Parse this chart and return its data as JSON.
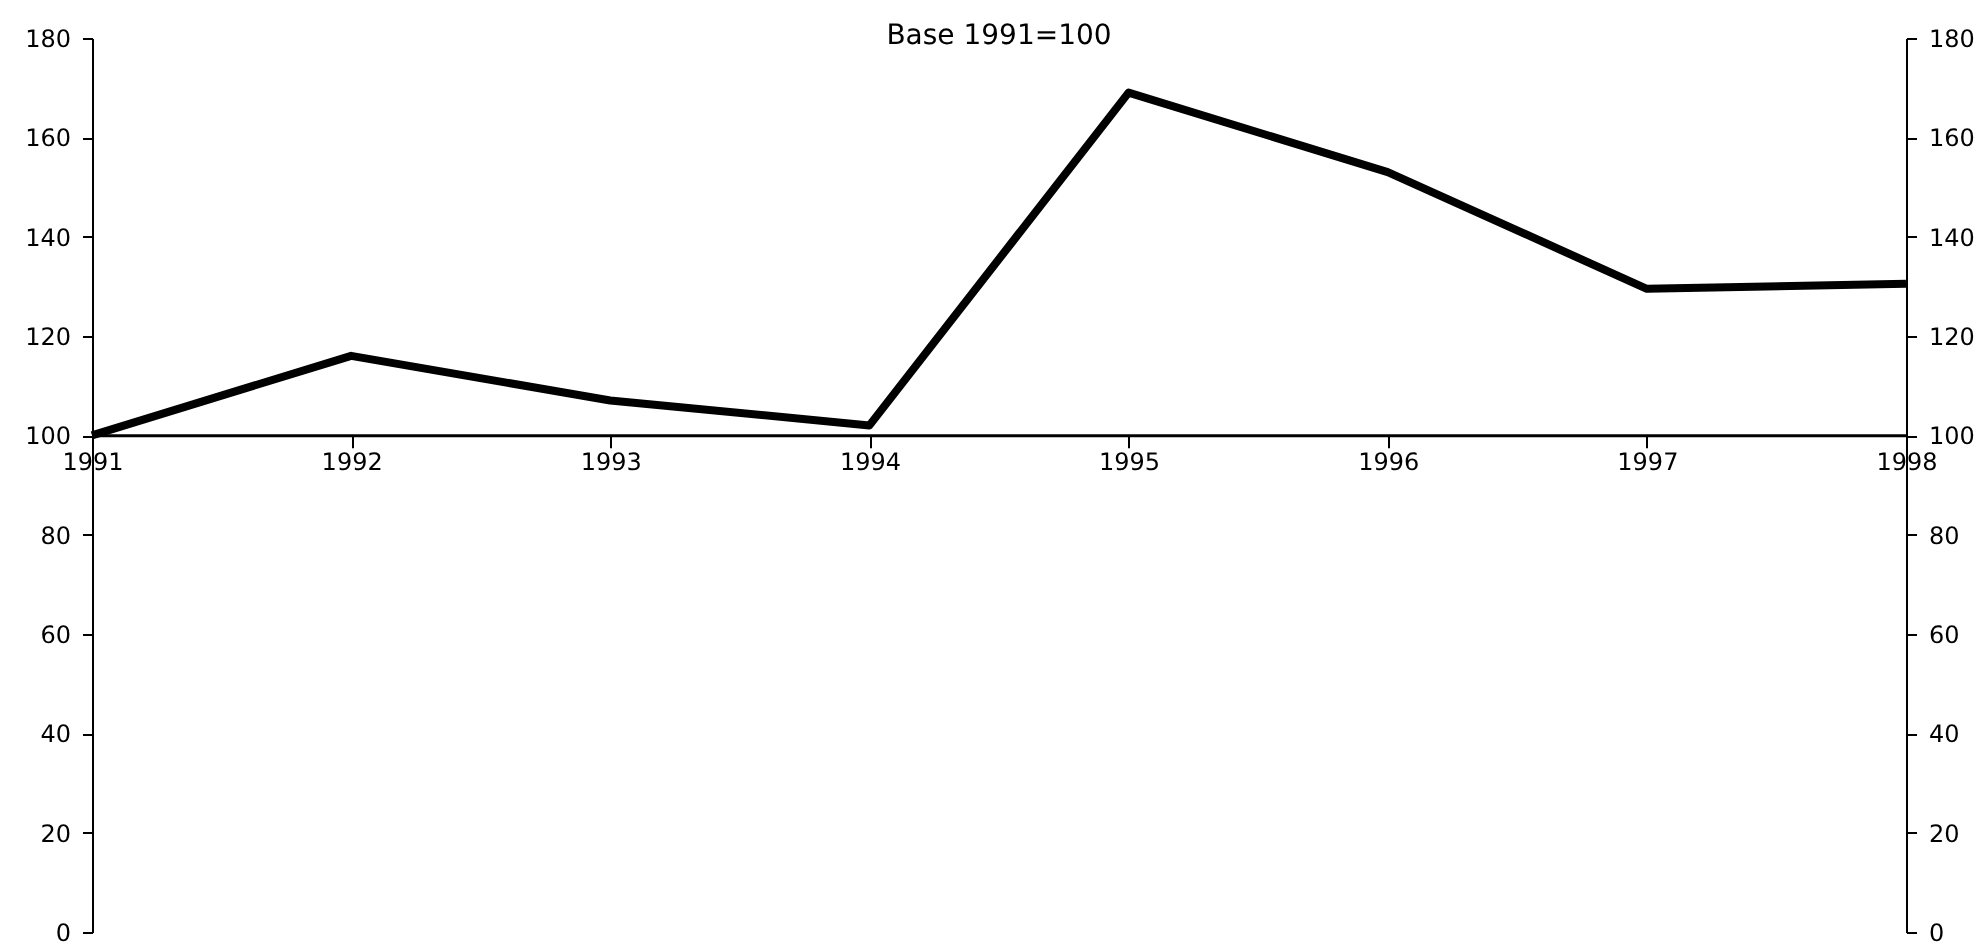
{
  "chart_data": {
    "type": "line",
    "title": "Base 1991=100",
    "categories": [
      "1991",
      "1992",
      "1993",
      "1994",
      "1995",
      "1996",
      "1997",
      "1998"
    ],
    "series": [
      {
        "color": "#000000",
        "values": [
          100,
          116,
          107,
          102,
          169,
          153,
          129.5,
          130.5
        ]
      }
    ],
    "ylim": [
      0,
      180
    ],
    "yticks": [
      0,
      20,
      40,
      60,
      80,
      100,
      120,
      140,
      160,
      180
    ],
    "y2lim": [
      0,
      180
    ],
    "y2ticks": [
      0,
      20,
      40,
      60,
      80,
      100,
      120,
      140,
      160,
      180
    ],
    "ref_lines": [
      {
        "axis": "y",
        "value": 100
      }
    ],
    "grid": false,
    "marker": "none",
    "line_style": "solid"
  }
}
